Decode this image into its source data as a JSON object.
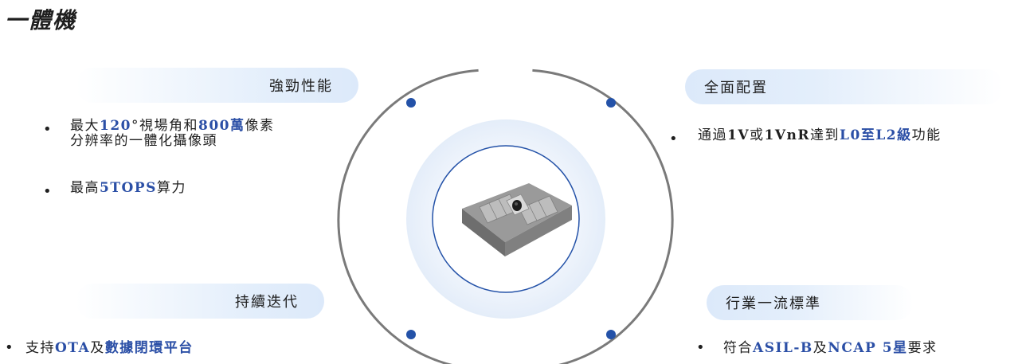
{
  "title": "一體機",
  "sections": {
    "top_left": {
      "heading": "強勁性能",
      "items": [
        {
          "line1": [
            {
              "t": "最大",
              "hl": false
            },
            {
              "t": "120",
              "hl": true
            },
            {
              "t": "°",
              "hl": false
            },
            {
              "t": "視場角和",
              "hl": false
            },
            {
              "t": "800萬",
              "hl": true
            },
            {
              "t": "像素",
              "hl": false
            }
          ],
          "line2": "分辨率的一體化攝像頭"
        },
        {
          "line1": [
            {
              "t": "最高",
              "hl": false
            },
            {
              "t": "5TOPS",
              "hl": true
            },
            {
              "t": "算力",
              "hl": false
            }
          ]
        }
      ]
    },
    "top_right": {
      "heading": "全面配置",
      "items": [
        {
          "line1": [
            {
              "t": "通過",
              "hl": false
            },
            {
              "t": "1V",
              "hl": "serif"
            },
            {
              "t": "或",
              "hl": false
            },
            {
              "t": "1VnR",
              "hl": "serif"
            },
            {
              "t": "達到",
              "hl": false
            },
            {
              "t": "L0至L2級",
              "hl": true
            },
            {
              "t": "功能",
              "hl": false
            }
          ]
        }
      ]
    },
    "bottom_left": {
      "heading": "持續迭代",
      "items": [
        {
          "line1": [
            {
              "t": "支持",
              "hl": false
            },
            {
              "t": "OTA",
              "hl": true
            },
            {
              "t": "及",
              "hl": false
            },
            {
              "t": "數據閉環平台",
              "hl": true
            }
          ]
        }
      ]
    },
    "bottom_right": {
      "heading": "行業一流標準",
      "items": [
        {
          "line1": [
            {
              "t": "符合",
              "hl": false
            },
            {
              "t": "ASIL-B",
              "hl": true
            },
            {
              "t": "及",
              "hl": false
            },
            {
              "t": "NCAP 5星",
              "hl": true
            },
            {
              "t": "要求",
              "hl": false
            }
          ]
        }
      ]
    }
  },
  "bullet_symbol": "•",
  "colors": {
    "highlight": "#2b4fa6",
    "ring": "#7a7a7a",
    "dot": "#2452a8",
    "pill": "#dce9fa"
  },
  "icons": {
    "device": "camera-module-image"
  }
}
